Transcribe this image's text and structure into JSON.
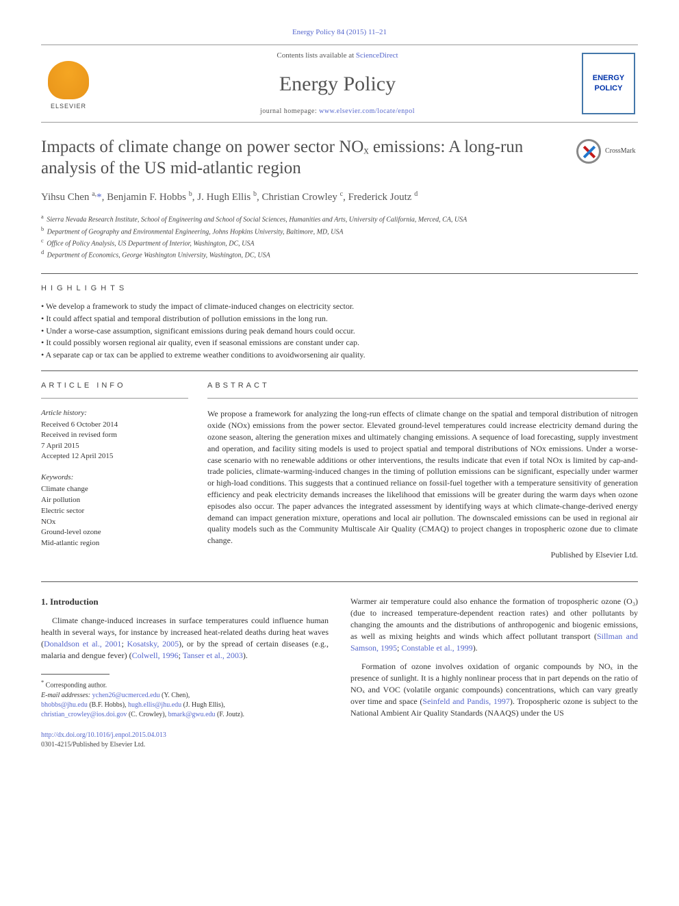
{
  "journal_ref": "Energy Policy 84 (2015) 11–21",
  "masthead": {
    "contents_text": "Contents lists available at ",
    "contents_link": "ScienceDirect",
    "journal_title": "Energy Policy",
    "homepage_prefix": "journal homepage: ",
    "homepage_link": "www.elsevier.com/locate/enpol",
    "elsevier_label": "ELSEVIER",
    "cover_label": "ENERGY POLICY"
  },
  "article": {
    "title": "Impacts of climate change on power sector NOₓ emissions: A long-run analysis of the US mid-atlantic region",
    "crossmark_label": "CrossMark"
  },
  "authors_html": "Yihsu Chen <sup>a,</sup><a class=\"star\" href=\"#\">*</a>, Benjamin F. Hobbs <sup>b</sup>, J. Hugh Ellis <sup>b</sup>, Christian Crowley <sup>c</sup>, Frederick Joutz <sup>d</sup>",
  "affiliations": [
    {
      "key": "a",
      "text": "Sierra Nevada Research Institute, School of Engineering and School of Social Sciences, Humanities and Arts, University of California, Merced, CA, USA"
    },
    {
      "key": "b",
      "text": "Department of Geography and Environmental Engineering, Johns Hopkins University, Baltimore, MD, USA"
    },
    {
      "key": "c",
      "text": "Office of Policy Analysis, US Department of Interior, Washington, DC, USA"
    },
    {
      "key": "d",
      "text": "Department of Economics, George Washington University, Washington, DC, USA"
    }
  ],
  "highlights_label": "HIGHLIGHTS",
  "highlights": [
    "We develop a framework to study the impact of climate-induced changes on electricity sector.",
    "It could affect spatial and temporal distribution of pollution emissions in the long run.",
    "Under a worse-case assumption, significant emissions during peak demand hours could occur.",
    "It could possibly worsen regional air quality, even if seasonal emissions are constant under cap.",
    "A separate cap or tax can be applied to extreme weather conditions to avoidworsening air quality."
  ],
  "article_info_label": "ARTICLE INFO",
  "abstract_label": "ABSTRACT",
  "history": {
    "head": "Article history:",
    "lines": [
      "Received 6 October 2014",
      "Received in revised form",
      "7 April 2015",
      "Accepted 12 April 2015"
    ]
  },
  "keywords": {
    "head": "Keywords:",
    "items": [
      "Climate change",
      "Air pollution",
      "Electric sector",
      "NOx",
      "Ground-level ozone",
      "Mid-atlantic region"
    ]
  },
  "abstract_text": "We propose a framework for analyzing the long-run effects of climate change on the spatial and temporal distribution of nitrogen oxide (NOx) emissions from the power sector. Elevated ground-level temperatures could increase electricity demand during the ozone season, altering the generation mixes and ultimately changing emissions. A sequence of load forecasting, supply investment and operation, and facility siting models is used to project spatial and temporal distributions of NOx emissions. Under a worse-case scenario with no renewable additions or other interventions, the results indicate that even if total NOx is limited by cap-and-trade policies, climate-warming-induced changes in the timing of pollution emissions can be significant, especially under warmer or high-load conditions. This suggests that a continued reliance on fossil-fuel together with a temperature sensitivity of generation efficiency and peak electricity demands increases the likelihood that emissions will be greater during the warm days when ozone episodes also occur. The paper advances the integrated assessment by identifying ways at which climate-change-derived energy demand can impact generation mixture, operations and local air pollution. The downscaled emissions can be used in regional air quality models such as the Community Multiscale Air Quality (CMAQ) to project changes in tropospheric ozone due to climate change.",
  "publisher_line": "Published by Elsevier Ltd.",
  "intro": {
    "heading": "1.  Introduction",
    "p1_pre": "Climate change-induced increases in surface temperatures could influence human health in several ways, for instance by increased heat-related deaths during heat waves (",
    "p1_link1": "Donaldson et al., 2001",
    "p1_mid1": "; ",
    "p1_link2": "Kosatsky, 2005",
    "p1_mid2": "), or by the spread of certain diseases (e.g., malaria and dengue fever) (",
    "p1_link3": "Colwell, 1996",
    "p1_mid3": "; ",
    "p1_link4": "Tanser et al., 2003",
    "p1_post": ").",
    "p2_pre": "Warmer air temperature could also enhance the formation of tropospheric ozone (O₃) (due to increased temperature-dependent reaction rates) and other pollutants by changing the amounts and the distributions of anthropogenic and biogenic emissions, as well as mixing heights and winds which affect pollutant transport (",
    "p2_link1": "Sillman and Samson, 1995",
    "p2_mid1": "; ",
    "p2_link2": "Constable et al., 1999",
    "p2_post": ").",
    "p3_pre": "Formation of ozone involves oxidation of organic compounds by NOₓ in the presence of sunlight. It is a highly nonlinear process that in part depends on the ratio of NOₓ and VOC (volatile organic compounds) concentrations, which can vary greatly over time and space (",
    "p3_link1": "Seinfeld and Pandis, 1997",
    "p3_post": "). Tropospheric ozone is subject to the National Ambient Air Quality Standards (NAAQS) under the US"
  },
  "footnotes": {
    "corr": "Corresponding author.",
    "emails_label": "E-mail addresses: ",
    "emails": [
      {
        "addr": "ychen26@ucmerced.edu",
        "who": "(Y. Chen),"
      },
      {
        "addr": "bhobbs@jhu.edu",
        "who": "(B.F. Hobbs),"
      },
      {
        "addr": "hugh.ellis@jhu.edu",
        "who": "(J. Hugh Ellis),"
      },
      {
        "addr": "christian_crowley@ios.doi.gov",
        "who": "(C. Crowley),"
      },
      {
        "addr": "bmark@gwu.edu",
        "who": "(F. Joutz)."
      }
    ]
  },
  "doi": {
    "link": "http://dx.doi.org/10.1016/j.enpol.2015.04.013",
    "issn_line": "0301-4215/Published by Elsevier Ltd."
  },
  "colors": {
    "link": "#5566cc",
    "text": "#333333",
    "heading_gray": "#505050",
    "rule": "#555555"
  }
}
